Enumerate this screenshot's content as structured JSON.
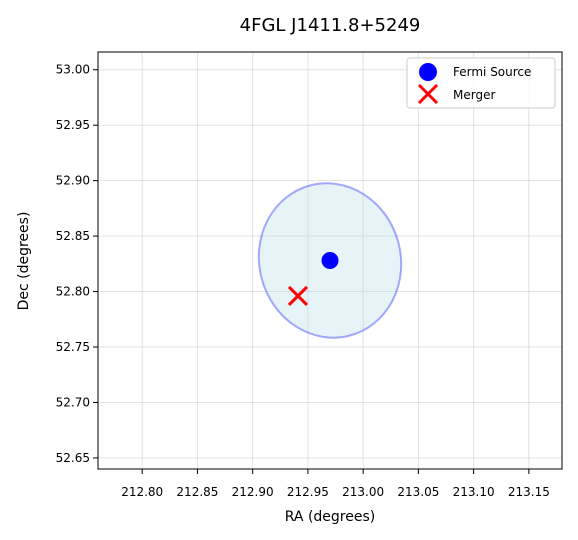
{
  "chart_data": {
    "type": "scatter",
    "title": "4FGL J1411.8+5249",
    "xlabel": "RA (degrees)",
    "ylabel": "Dec (degrees)",
    "xlim": [
      212.76,
      213.18
    ],
    "ylim": [
      52.64,
      53.016
    ],
    "xticks": [
      212.8,
      212.85,
      212.9,
      212.95,
      213.0,
      213.05,
      213.1,
      213.15
    ],
    "xtick_labels": [
      "212.80",
      "212.85",
      "212.90",
      "212.95",
      "213.00",
      "213.05",
      "213.10",
      "213.15"
    ],
    "yticks": [
      52.65,
      52.7,
      52.75,
      52.8,
      52.85,
      52.9,
      52.95,
      53.0
    ],
    "ytick_labels": [
      "52.65",
      "52.70",
      "52.75",
      "52.80",
      "52.85",
      "52.90",
      "52.95",
      "53.00"
    ],
    "grid": true,
    "legend_position": "top-right",
    "series": [
      {
        "name": "Fermi Source",
        "marker": "circle",
        "color": "#0000ff",
        "x": [
          212.97
        ],
        "y": [
          52.828
        ]
      },
      {
        "name": "Merger",
        "marker": "x",
        "color": "#ff0000",
        "x": [
          212.941
        ],
        "y": [
          52.796
        ]
      }
    ],
    "error_ellipse": {
      "center": [
        212.97,
        52.828
      ],
      "semi_axis_ra": 0.064,
      "semi_axis_dec": 0.07,
      "tilt_deg": -15,
      "fill": "#add8e6",
      "stroke": "#0000ff"
    }
  }
}
